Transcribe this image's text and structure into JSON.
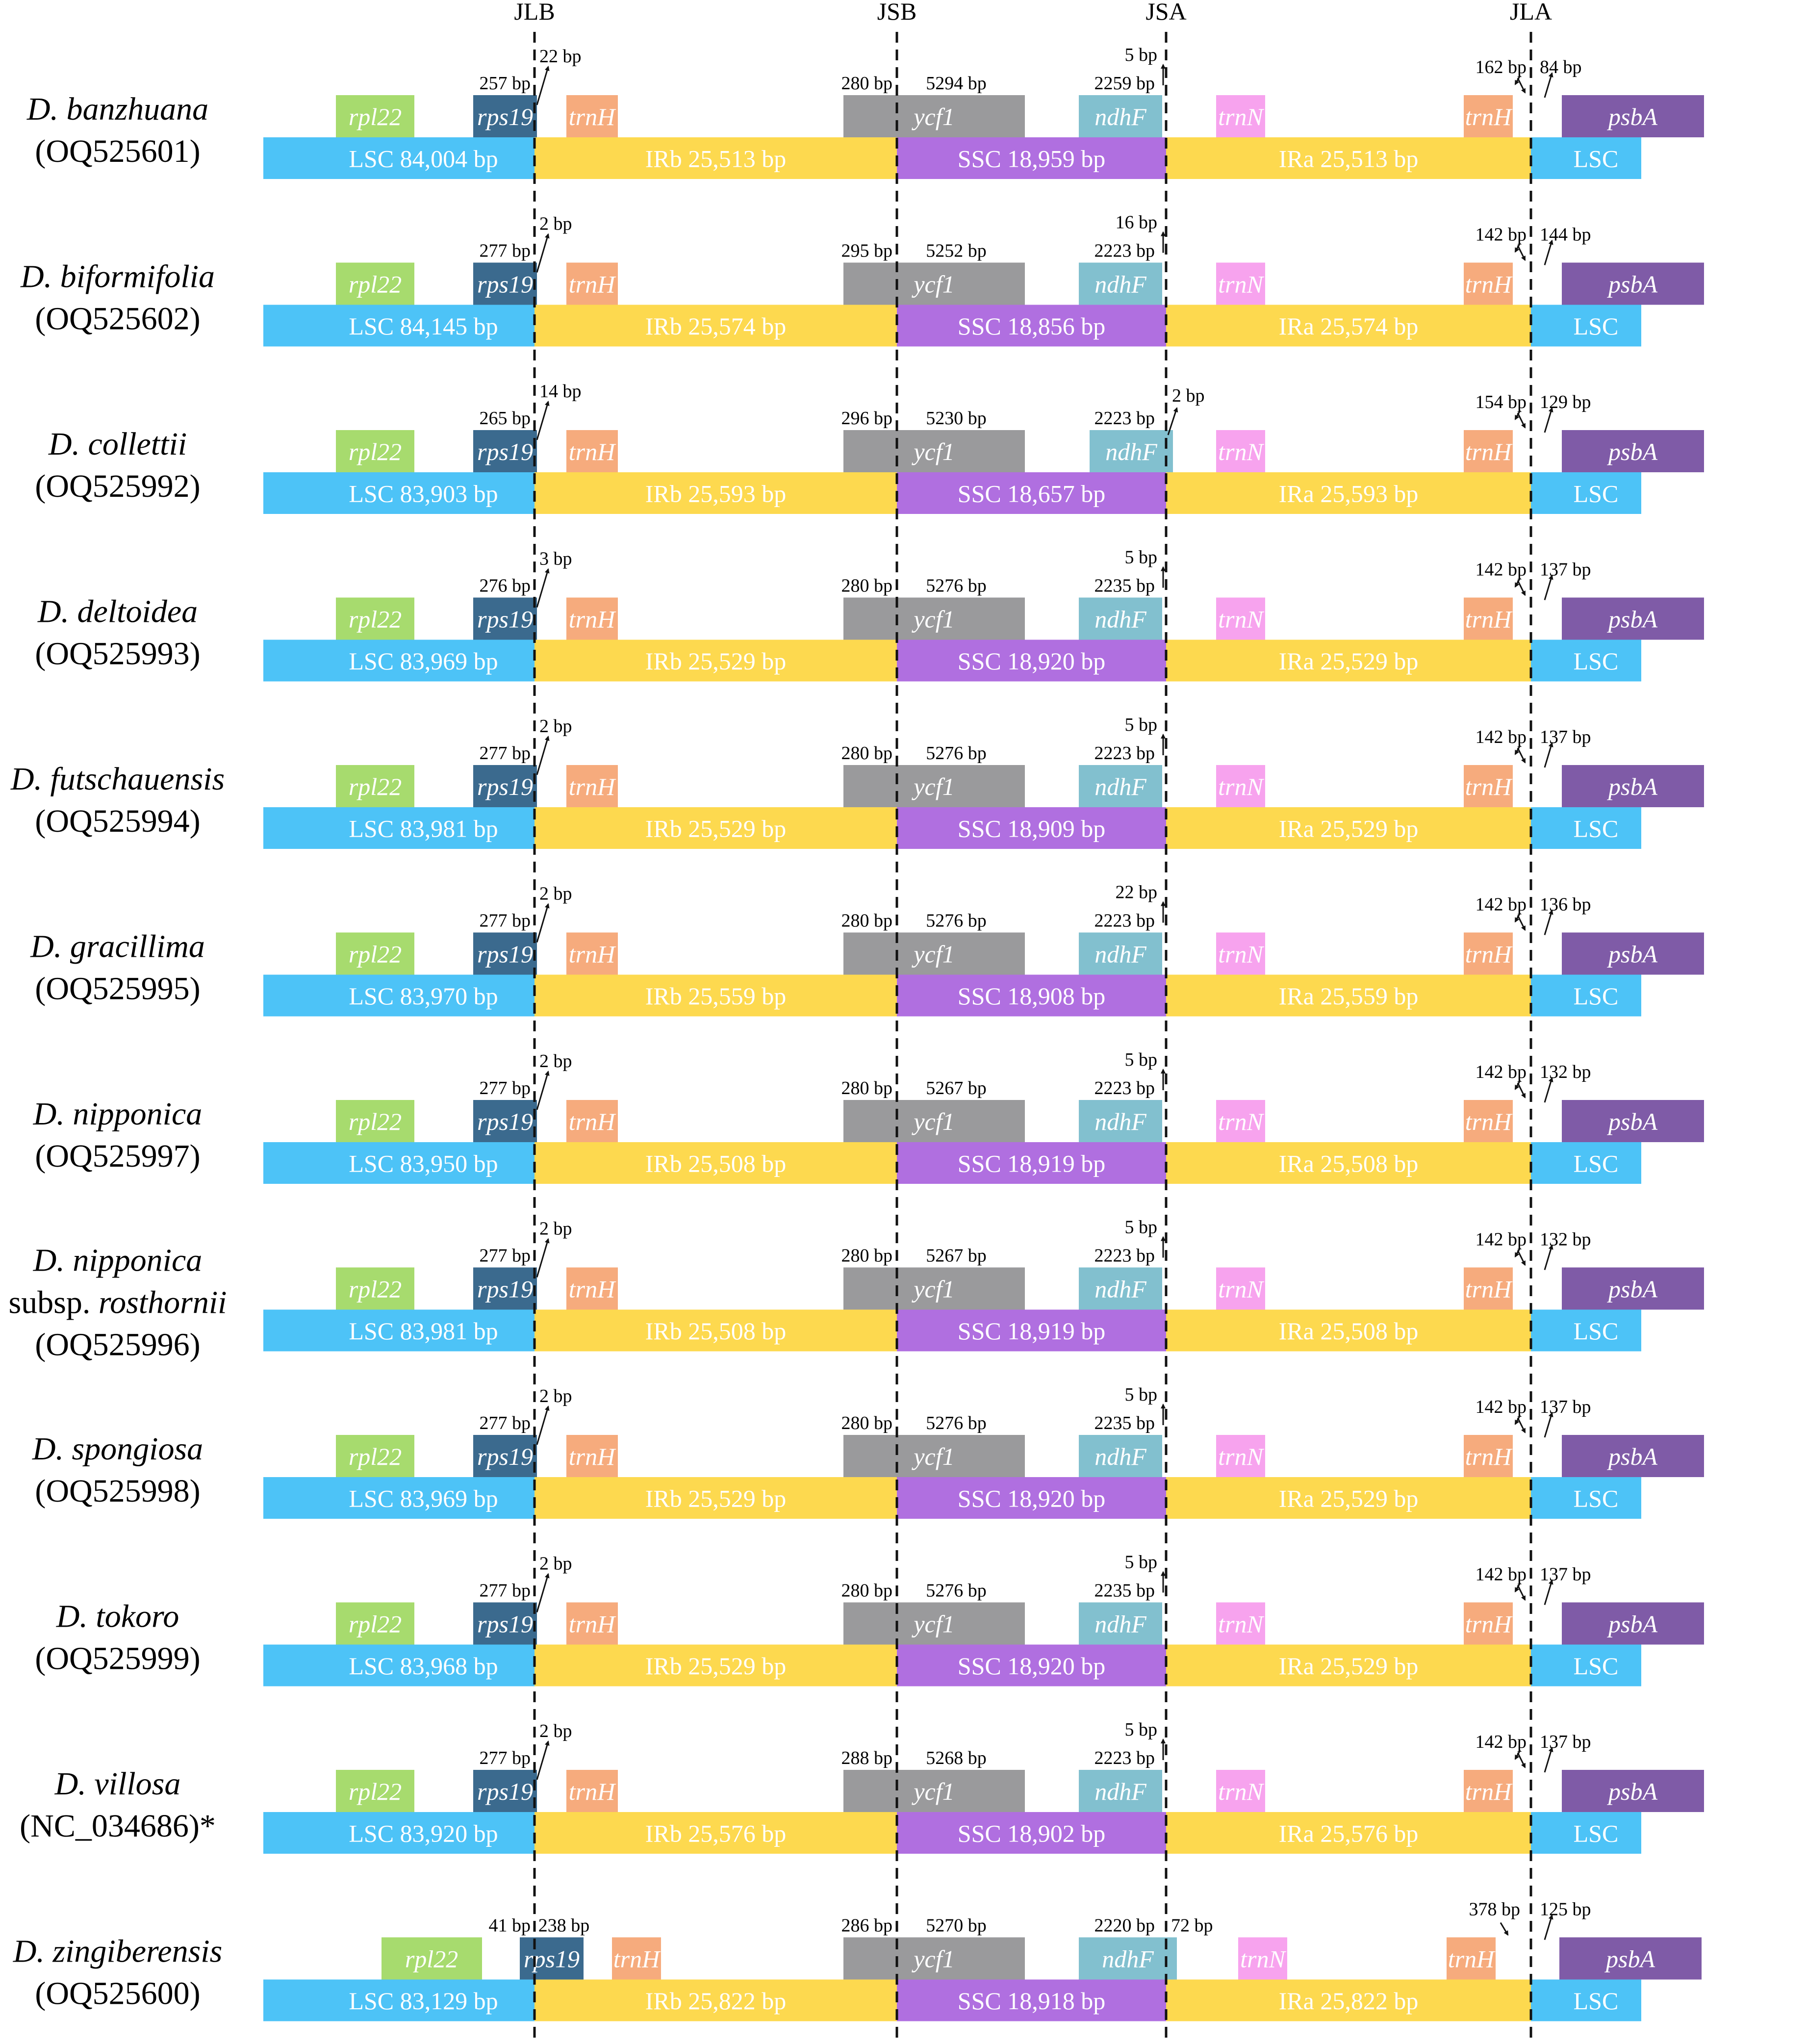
{
  "junctions": [
    "JLB",
    "JSB",
    "JSA",
    "JLA"
  ],
  "colors": {
    "lsc": "#4DC3F7",
    "irb": "#FDD94F",
    "ssc": "#B06FE0",
    "ira": "#FDD94F",
    "rpl22": "#A7DB6E",
    "rps19": "#3B6A8E",
    "trnH": "#F6AB7D",
    "ycf1": "#9A9A9C",
    "ndhF": "#82C0CF",
    "trnN": "#F7A3EE",
    "psbA": "#7F5BA7"
  },
  "gene_labels": {
    "rpl22": "rpl22",
    "rps19": "rps19",
    "trnH": "trnH",
    "ycf1": "ycf1",
    "ndhF": "ndhF",
    "trnN": "trnN",
    "psbA": "psbA"
  },
  "rows": [
    {
      "name": [
        "D. banzhuana"
      ],
      "acc": "(OQ525601)",
      "lsc": "LSC  84,004 bp",
      "irb": "IRb  25,513 bp",
      "ssc": "SSC 18,959 bp",
      "ira": "IRa 25,513 bp",
      "lsc2": "LSC",
      "rps19_label": "rps19",
      "trnH_label": "trnH",
      "rps19_left": "257 bp",
      "jlb": "22 bp",
      "ycf1_left": "280 bp",
      "ycf1_right": "5294 bp",
      "ndhF": "2259 bp",
      "jsa": "5 bp",
      "trnH2": "162 bp",
      "psbA": "84 bp"
    },
    {
      "name": [
        "D. biformifolia"
      ],
      "acc": "(OQ525602)",
      "lsc": "LSC  84,145 bp",
      "irb": "IRb  25,574 bp",
      "ssc": "SSC 18,856 bp",
      "ira": "IRa 25,574 bp",
      "lsc2": "LSC",
      "rps19_label": "rps19",
      "trnH_label": "trnH",
      "rps19_left": "277 bp",
      "jlb": "2 bp",
      "ycf1_left": "295 bp",
      "ycf1_right": "5252 bp",
      "ndhF": "2223 bp",
      "jsa": "16 bp",
      "trnH2": "142 bp",
      "psbA": "144 bp"
    },
    {
      "name": [
        "D. collettii"
      ],
      "acc": "(OQ525992)",
      "lsc": "LSC  83,903 bp",
      "irb": "IRb  25,593 bp",
      "ssc": "SSC 18,657 bp",
      "ira": "IRa 25,593 bp",
      "lsc2": "LSC",
      "rps19_label": "rps19",
      "trnH_label": "trnH",
      "rps19_left": "265 bp",
      "jlb": "14 bp",
      "ycf1_left": "296 bp",
      "ycf1_right": "5230 bp",
      "ndhF": "2223 bp",
      "jsa": "2 bp",
      "trnH2": "154 bp",
      "psbA": "129 bp"
    },
    {
      "name": [
        "D. deltoidea"
      ],
      "acc": "(OQ525993)",
      "lsc": "LSC  83,969 bp",
      "irb": "IRb  25,529 bp",
      "ssc": "SSC 18,920 bp",
      "ira": "IRa 25,529 bp",
      "lsc2": "LSC",
      "rps19_label": "rps19",
      "trnH_label": "trnH",
      "rps19_left": "276 bp",
      "jlb": "3 bp",
      "ycf1_left": "280 bp",
      "ycf1_right": "5276 bp",
      "ndhF": "2235 bp",
      "jsa": "5 bp",
      "trnH2": "142 bp",
      "psbA": "137 bp"
    },
    {
      "name": [
        "D. futschauensis"
      ],
      "acc": "(OQ525994)",
      "lsc": "LSC  83,981 bp",
      "irb": "IRb  25,529 bp",
      "ssc": "SSC 18,909 bp",
      "ira": "IRa 25,529 bp",
      "lsc2": "LSC",
      "rps19_label": "rps19",
      "trnH_label": "trnH",
      "rps19_left": "277 bp",
      "jlb": "2 bp",
      "ycf1_left": "280 bp",
      "ycf1_right": "5276 bp",
      "ndhF": "2223 bp",
      "jsa": "5 bp",
      "trnH2": "142 bp",
      "psbA": "137 bp"
    },
    {
      "name": [
        "D. gracillima"
      ],
      "acc": "(OQ525995)",
      "lsc": "LSC  83,970 bp",
      "irb": "IRb  25,559 bp",
      "ssc": "SSC 18,908 bp",
      "ira": "IRa 25,559 bp",
      "lsc2": "LSC",
      "rps19_label": "rps19",
      "trnH_label": "trnH",
      "rps19_left": "277 bp",
      "jlb": "2 bp",
      "ycf1_left": "280 bp",
      "ycf1_right": "5276 bp",
      "ndhF": "2223 bp",
      "jsa": "22 bp",
      "trnH2": "142 bp",
      "psbA": "136 bp"
    },
    {
      "name": [
        "D. nipponica"
      ],
      "acc": "(OQ525997)",
      "lsc": "LSC  83,950 bp",
      "irb": "IRb  25,508 bp",
      "ssc": "SSC 18,919 bp",
      "ira": "IRa 25,508 bp",
      "lsc2": "LSC",
      "rps19_label": "rps19",
      "trnH_label": "trnH",
      "rps19_left": "277 bp",
      "jlb": "2 bp",
      "ycf1_left": "280 bp",
      "ycf1_right": "5267 bp",
      "ndhF": "2223 bp",
      "jsa": "5 bp",
      "trnH2": "142 bp",
      "psbA": "132 bp"
    },
    {
      "name": [
        "D. nipponica",
        "subsp. ",
        "rosthornii"
      ],
      "acc": "(OQ525996)",
      "lsc": "LSC  83,981 bp",
      "irb": "IRb  25,508 bp",
      "ssc": "SSC 18,919 bp",
      "ira": "IRa 25,508 bp",
      "lsc2": "LSC",
      "rps19_label": "rps19",
      "trnH_label": "trnH",
      "rps19_left": "277 bp",
      "jlb": "2 bp",
      "ycf1_left": "280 bp",
      "ycf1_right": "5267 bp",
      "ndhF": "2223 bp",
      "jsa": "5 bp",
      "trnH2": "142 bp",
      "psbA": "132 bp"
    },
    {
      "name": [
        "D. spongiosa"
      ],
      "acc": "(OQ525998)",
      "lsc": "LSC  83,969 bp",
      "irb": "IRb  25,529 bp",
      "ssc": "SSC 18,920 bp",
      "ira": "IRa 25,529 bp",
      "lsc2": "LSC",
      "rps19_label": "rps19",
      "trnH_label": "trnH",
      "rps19_left": "277 bp",
      "jlb": "2 bp",
      "ycf1_left": "280 bp",
      "ycf1_right": "5276 bp",
      "ndhF": "2235 bp",
      "jsa": "5 bp",
      "trnH2": "142 bp",
      "psbA": "137 bp"
    },
    {
      "name": [
        "D. tokoro"
      ],
      "acc": "(OQ525999)",
      "lsc": "LSC  83,968 bp",
      "irb": "IRb  25,529 bp",
      "ssc": "SSC 18,920 bp",
      "ira": "IRa 25,529 bp",
      "lsc2": "LSC",
      "rps19_label": "rps19",
      "trnH_label": "trnH",
      "rps19_left": "277 bp",
      "jlb": "2 bp",
      "ycf1_left": "280 bp",
      "ycf1_right": "5276 bp",
      "ndhF": "2235 bp",
      "jsa": "5 bp",
      "trnH2": "142 bp",
      "psbA": "137 bp"
    },
    {
      "name": [
        "D. villosa"
      ],
      "acc": "(NC_034686)*",
      "lsc": "LSC  83,920 bp",
      "irb": "IRb  25,576 bp",
      "ssc": "SSC 18,902 bp",
      "ira": "IRa 25,576 bp",
      "lsc2": "LSC",
      "rps19_label": "rps19",
      "trnH_label": "trnH",
      "rps19_left": "277 bp",
      "jlb": "2 bp",
      "ycf1_left": "288 bp",
      "ycf1_right": "5268 bp",
      "ndhF": "2223 bp",
      "jsa": "5 bp",
      "trnH2": "142 bp",
      "psbA": "137 bp"
    },
    {
      "name": [
        "D. zingiberensis"
      ],
      "acc": "(OQ525600)",
      "lsc": "LSC  83,129 bp",
      "irb": "IRb  25,822 bp",
      "ssc": "SSC 18,918 bp",
      "ira": "IRa 25,822 bp",
      "lsc2": "LSC",
      "rps19_label": "rps19",
      "trnH_label": "trnH",
      "rps19_left": "41 bp",
      "rps19_right": "238 bp",
      "ycf1_left": "286 bp",
      "ycf1_right": "5270 bp",
      "ndhF": "2220 bp",
      "jsa": "72 bp",
      "trnH2": "378 bp",
      "psbA": "125 bp"
    }
  ]
}
